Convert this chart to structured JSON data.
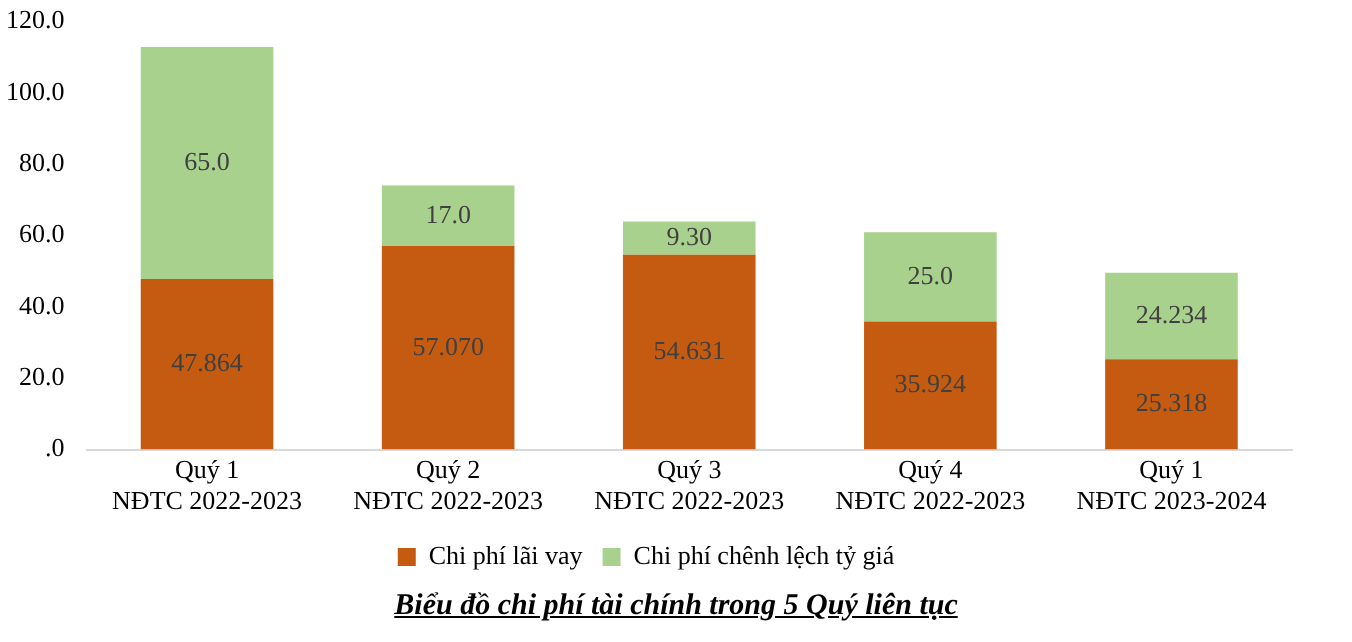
{
  "chart_data": {
    "type": "bar",
    "stacked": true,
    "title": "Biểu đồ chi phí tài chính trong 5 Quý liên tục",
    "categories": [
      "Quý 1\nNĐTC 2022-2023",
      "Quý 2\nNĐTC 2022-2023",
      "Quý 3\nNĐTC 2022-2023",
      "Quý 4\nNĐTC 2022-2023",
      "Quý 1\nNĐTC 2023-2024"
    ],
    "series": [
      {
        "name": "Chi phí lãi vay",
        "color": "#c55a11",
        "values": [
          47.864,
          57.07,
          54.631,
          35.924,
          25.318
        ],
        "value_labels": [
          "47.864",
          "57.070",
          "54.631",
          "35.924",
          "25.318"
        ]
      },
      {
        "name": "Chi phí chênh lệch tỷ giá",
        "color": "#a9d18e",
        "values": [
          65.0,
          17.0,
          9.3,
          25.0,
          24.234
        ],
        "value_labels": [
          "65.0",
          "17.0",
          "9.30",
          "25.0",
          "24.234"
        ]
      }
    ],
    "ylim": [
      0,
      120
    ],
    "yticks": [
      {
        "value": 0,
        "label": ".0"
      },
      {
        "value": 20,
        "label": "20.0"
      },
      {
        "value": 40,
        "label": "40.0"
      },
      {
        "value": 60,
        "label": "60.0"
      },
      {
        "value": 80,
        "label": "80.0"
      },
      {
        "value": 100,
        "label": "100.0"
      },
      {
        "value": 120,
        "label": "120.0"
      }
    ],
    "grid": false,
    "legend": "bottom"
  }
}
